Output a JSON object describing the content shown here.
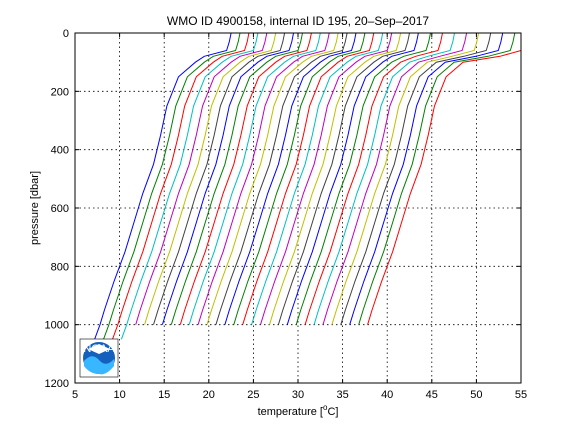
{
  "chart_data": {
    "type": "line",
    "title": "WMO ID 4900158, internal ID 195, 20–Sep–2017",
    "xlabel": "temperature [°C]",
    "xlabel_main": "temperature [",
    "xlabel_deg": "o",
    "xlabel_unit": "C]",
    "ylabel": "pressure [dbar]",
    "xlim": [
      5,
      55
    ],
    "ylim": [
      1200,
      0
    ],
    "xticks": [
      "5",
      "10",
      "15",
      "20",
      "25",
      "30",
      "35",
      "40",
      "45",
      "50",
      "55"
    ],
    "yticks": [
      "0",
      "200",
      "400",
      "600",
      "800",
      "1000",
      "1200"
    ],
    "grid": true,
    "legend": "none",
    "logo_text": "NOAA",
    "offset_per_profile_degC": 1,
    "series_colors": [
      "#0000ff",
      "#008000",
      "#ff0000",
      "#00bfbf",
      "#bf00bf",
      "#bfbf00",
      "#404040"
    ],
    "base_profile": {
      "pressure": [
        0,
        30,
        60,
        80,
        100,
        150,
        250,
        350,
        450,
        550,
        650,
        750,
        850,
        950,
        1000,
        1050
      ],
      "temperature": [
        22.5,
        22.3,
        22.0,
        19.5,
        18.5,
        16.6,
        15.3,
        14.6,
        13.8,
        12.6,
        11.6,
        10.6,
        9.4,
        8.3,
        7.8,
        7.2
      ]
    },
    "profile_count": 31
  }
}
